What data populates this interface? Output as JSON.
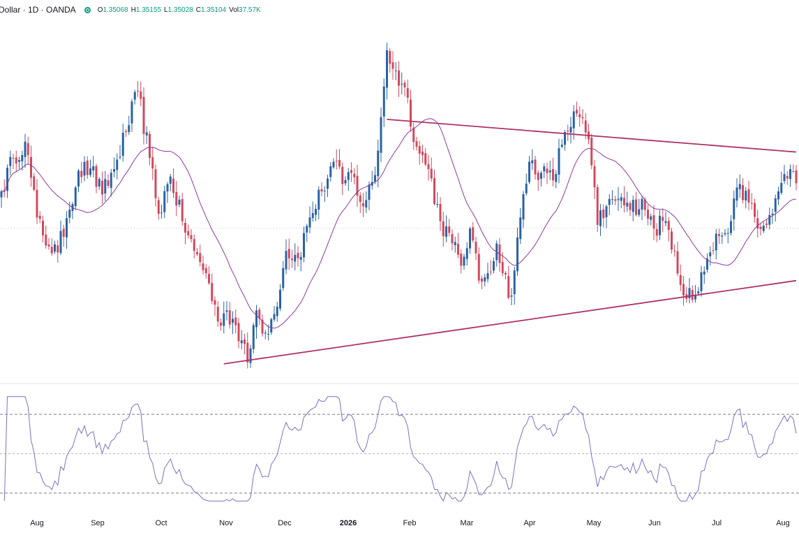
{
  "header": {
    "symbol": "Dollar · 1D · OANDA",
    "open_label": "O",
    "open": "1.35068",
    "high_label": "H",
    "high": "1.35155",
    "low_label": "L",
    "low": "1.35028",
    "close_label": "C",
    "close": "1.35104",
    "vol_label": "Vol",
    "vol": "37.57K"
  },
  "colors": {
    "up": "#2962a6",
    "down": "#d2485d",
    "ma": "#8e3a9c",
    "trend": "#b0306a",
    "rsi": "#7e6fc2",
    "grid_dash": "#787b86",
    "dotted": "#c8c8c8"
  },
  "chart_data": {
    "type": "candlestick",
    "x_axis_labels": [
      "Aug",
      "Sep",
      "Oct",
      "Nov",
      "Dec",
      "2026",
      "Feb",
      "Mar",
      "Apr",
      "May",
      "Jun",
      "Jul",
      "Aug"
    ],
    "anchor_closes": [
      [
        0,
        1.356
      ],
      [
        4,
        1.3605
      ],
      [
        8,
        1.3627
      ],
      [
        12,
        1.3525
      ],
      [
        16,
        1.3486
      ],
      [
        19,
        1.3478
      ],
      [
        22,
        1.3524
      ],
      [
        26,
        1.3588
      ],
      [
        30,
        1.3591
      ],
      [
        34,
        1.3556
      ],
      [
        38,
        1.359
      ],
      [
        42,
        1.364
      ],
      [
        46,
        1.3695
      ],
      [
        50,
        1.3605
      ],
      [
        53,
        1.353
      ],
      [
        57,
        1.358
      ],
      [
        61,
        1.352
      ],
      [
        65,
        1.348
      ],
      [
        69,
        1.345
      ],
      [
        73,
        1.3385
      ],
      [
        76,
        1.34
      ],
      [
        79,
        1.338
      ],
      [
        83,
        1.333
      ],
      [
        86,
        1.34
      ],
      [
        89,
        1.337
      ],
      [
        92,
        1.3395
      ],
      [
        96,
        1.348
      ],
      [
        100,
        1.347
      ],
      [
        104,
        1.3525
      ],
      [
        108,
        1.356
      ],
      [
        112,
        1.36
      ],
      [
        115,
        1.357
      ],
      [
        118,
        1.3585
      ],
      [
        122,
        1.354
      ],
      [
        126,
        1.3582
      ],
      [
        128,
        1.366
      ],
      [
        130,
        1.375
      ],
      [
        132,
        1.3725
      ],
      [
        136,
        1.37
      ],
      [
        140,
        1.362
      ],
      [
        144,
        1.359
      ],
      [
        148,
        1.352
      ],
      [
        152,
        1.349
      ],
      [
        155,
        1.346
      ],
      [
        158,
        1.351
      ],
      [
        161,
        1.344
      ],
      [
        164,
        1.345
      ],
      [
        167,
        1.349
      ],
      [
        169,
        1.345
      ],
      [
        172,
        1.342
      ],
      [
        175,
        1.3525
      ],
      [
        178,
        1.36
      ],
      [
        182,
        1.3585
      ],
      [
        186,
        1.3575
      ],
      [
        190,
        1.364
      ],
      [
        194,
        1.3665
      ],
      [
        198,
        1.363
      ],
      [
        201,
        1.3515
      ],
      [
        204,
        1.354
      ],
      [
        208,
        1.355
      ],
      [
        212,
        1.3535
      ],
      [
        216,
        1.355
      ],
      [
        220,
        1.351
      ],
      [
        224,
        1.352
      ],
      [
        227,
        1.348
      ],
      [
        230,
        1.342
      ],
      [
        232,
        1.343
      ],
      [
        234,
        1.342
      ],
      [
        238,
        1.347
      ],
      [
        242,
        1.35
      ],
      [
        246,
        1.352
      ],
      [
        249,
        1.357
      ],
      [
        252,
        1.3545
      ],
      [
        255,
        1.351
      ],
      [
        258,
        1.3515
      ],
      [
        262,
        1.356
      ],
      [
        266,
        1.359
      ],
      [
        268,
        1.3571
      ]
    ],
    "ma_span": 20,
    "upper_trendline": {
      "from": [
        130,
        1.3657
      ],
      "to": [
        268,
        1.3613
      ]
    },
    "lower_trendline": {
      "from": [
        75,
        1.3328
      ],
      "to": [
        268,
        1.344
      ]
    },
    "dotted_level": 1.35104,
    "price_range": [
      1.331,
      1.378
    ],
    "rsi": {
      "levels": [
        70,
        50,
        30
      ],
      "range": [
        25,
        80
      ]
    }
  }
}
